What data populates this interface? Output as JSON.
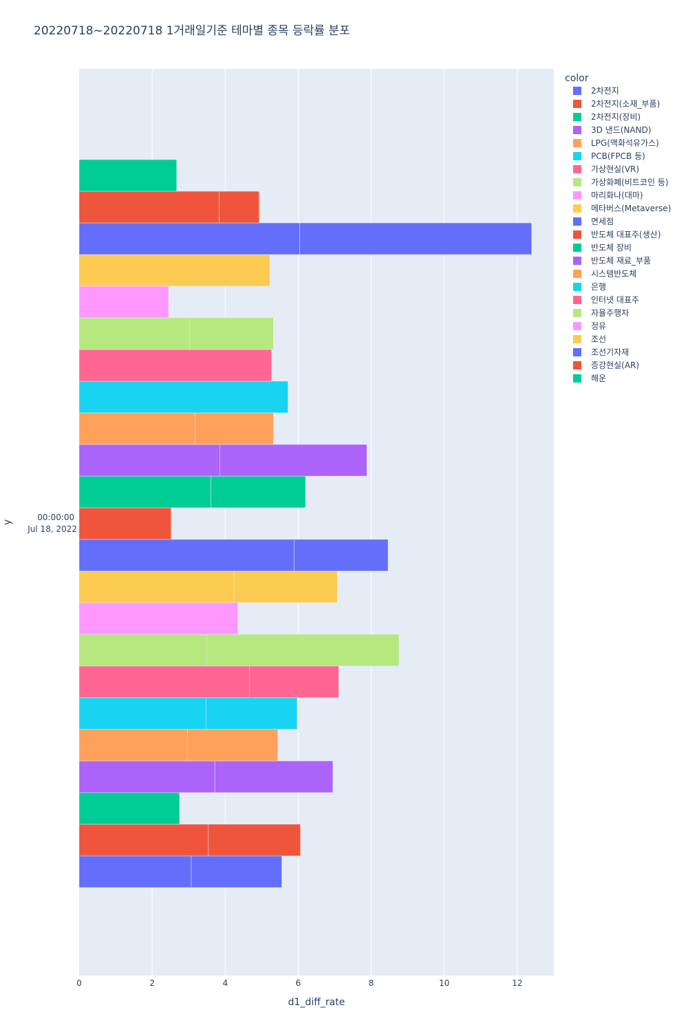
{
  "chart_data": {
    "type": "bar",
    "orientation": "horizontal",
    "barmode": "stacked",
    "title": "20220718~20220718 1거래일기준 테마별 종목 등락률 분포",
    "xlabel": "d1_diff_rate",
    "ylabel": "y",
    "y_tick": [
      "00:00:00",
      "Jul 18, 2022"
    ],
    "xlim": [
      0,
      13
    ],
    "x_ticks": [
      0,
      2,
      4,
      6,
      8,
      10,
      12
    ],
    "legend_title": "color",
    "legend_position": "top-right",
    "grid": true,
    "series": [
      {
        "name": "2차전지",
        "color": "#636efa",
        "segments": [
          3.07,
          2.48
        ]
      },
      {
        "name": "2차전지(소재_부품)",
        "color": "#ef553b",
        "segments": [
          3.54,
          2.52
        ]
      },
      {
        "name": "2차전지(장비)",
        "color": "#00cc96",
        "segments": [
          2.75
        ]
      },
      {
        "name": "3D 낸드(NAND)",
        "color": "#ab63fa",
        "segments": [
          3.72,
          3.23
        ]
      },
      {
        "name": "LPG(액화석유가스)",
        "color": "#ffa15a",
        "segments": [
          2.97,
          2.47
        ]
      },
      {
        "name": "PCB(FPCB 등)",
        "color": "#19d3f3",
        "segments": [
          3.48,
          2.49
        ]
      },
      {
        "name": "가상현실(VR)",
        "color": "#ff6692",
        "segments": [
          4.66,
          2.45
        ]
      },
      {
        "name": "가상화폐(비트코인 등)",
        "color": "#b6e880",
        "segments": [
          3.49,
          5.27
        ]
      },
      {
        "name": "마리화나(대마)",
        "color": "#ff97ff",
        "segments": [
          4.35
        ]
      },
      {
        "name": "메타버스(Metaverse)",
        "color": "#fecb52",
        "segments": [
          4.24,
          2.83
        ]
      },
      {
        "name": "면세점",
        "color": "#636efa",
        "segments": [
          5.89,
          2.57
        ]
      },
      {
        "name": "반도체 대표주(생산)",
        "color": "#ef553b",
        "segments": [
          2.52
        ]
      },
      {
        "name": "반도체 장비",
        "color": "#00cc96",
        "segments": [
          3.61,
          2.59
        ]
      },
      {
        "name": "반도체 재료_부품",
        "color": "#ab63fa",
        "segments": [
          3.85,
          4.03
        ]
      },
      {
        "name": "시스템반도체",
        "color": "#ffa15a",
        "segments": [
          3.18,
          2.14
        ]
      },
      {
        "name": "은행",
        "color": "#19d3f3",
        "segments": [
          5.72
        ]
      },
      {
        "name": "인터넷 대표주",
        "color": "#ff6692",
        "segments": [
          5.27
        ]
      },
      {
        "name": "자율주행차",
        "color": "#b6e880",
        "segments": [
          3.03,
          2.29
        ]
      },
      {
        "name": "정유",
        "color": "#ff97ff",
        "segments": [
          2.45
        ]
      },
      {
        "name": "조선",
        "color": "#fecb52",
        "segments": [
          5.22
        ]
      },
      {
        "name": "조선기자재",
        "color": "#636efa",
        "segments": [
          6.04,
          6.35
        ]
      },
      {
        "name": "증강현실(AR)",
        "color": "#ef553b",
        "segments": [
          3.83,
          1.1
        ]
      },
      {
        "name": "해운",
        "color": "#00cc96",
        "segments": [
          2.67
        ]
      }
    ]
  }
}
